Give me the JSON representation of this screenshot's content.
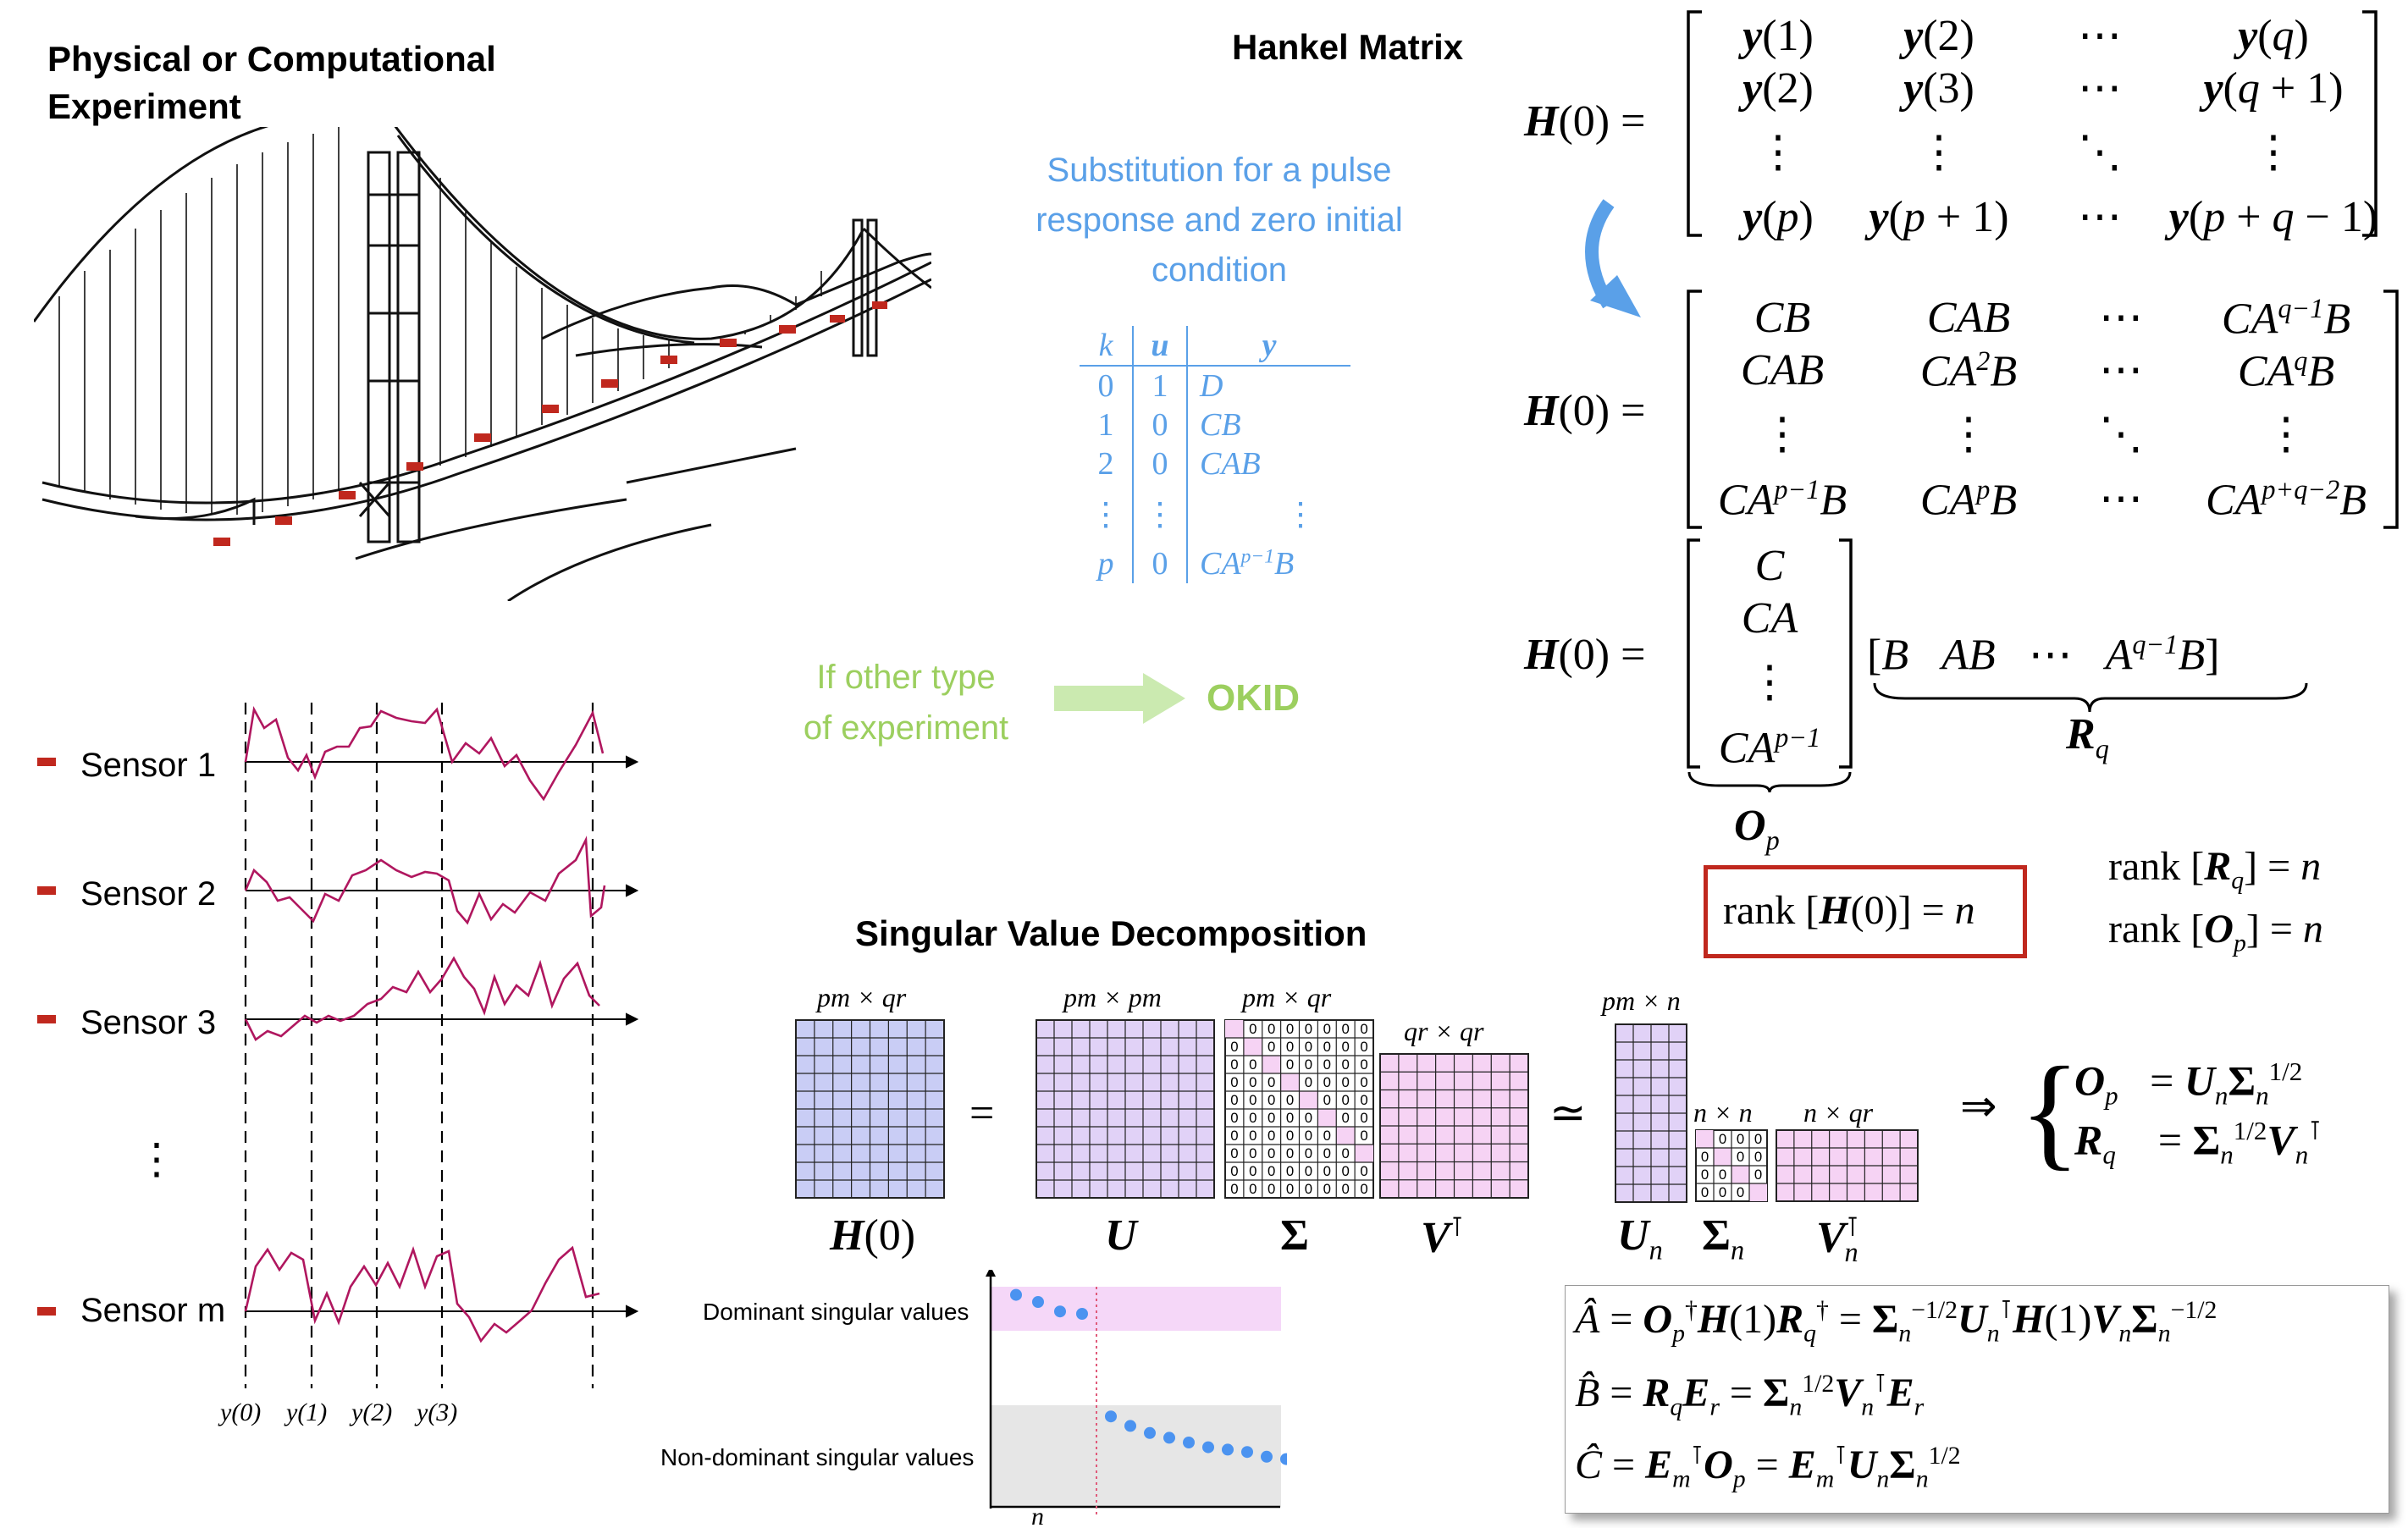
{
  "headings": {
    "experiment_line1": "Physical or Computational",
    "experiment_line2": "Experiment",
    "hankel": "Hankel Matrix",
    "svd": "Singular Value Decomposition"
  },
  "substitution": {
    "line1": "Substitution for a pulse",
    "line2": "response and zero initial",
    "line3": "condition",
    "headers": [
      "k",
      "u",
      "y"
    ],
    "rows": [
      [
        "0",
        "1",
        "D"
      ],
      [
        "1",
        "0",
        "CB"
      ],
      [
        "2",
        "0",
        "CAB"
      ],
      [
        "⋮",
        "⋮",
        "⋮"
      ],
      [
        "p",
        "0",
        "CA^{p−1}B"
      ]
    ]
  },
  "okid": {
    "line1": "If other type",
    "line2": "of experiment",
    "label": "OKID"
  },
  "sensors": [
    {
      "label": "Sensor 1"
    },
    {
      "label": "Sensor 2"
    },
    {
      "label": "Sensor 3"
    },
    {
      "label": "⋮"
    },
    {
      "label": "Sensor m"
    }
  ],
  "time_labels": [
    "y(0)",
    "y(1)",
    "y(2)",
    "y(3)"
  ],
  "svd": {
    "H_dim": "pm × qr",
    "U_dim": "pm × pm",
    "S_dim": "pm × qr",
    "V_dim": "qr × qr",
    "Un_dim": "pm × n",
    "Sn_dim": "n × n",
    "Vn_dim": "n × qr",
    "equals": "=",
    "approx": "≃",
    "implies": "⇒"
  },
  "singular_plot": {
    "dominant_label": "Dominant singular values",
    "nondominant_label": "Non-dominant singular values",
    "n_label": "n",
    "dominant_values": [
      0.93,
      0.9,
      0.86,
      0.85
    ],
    "nondominant_values": [
      0.56,
      0.52,
      0.49,
      0.47,
      0.45,
      0.43,
      0.42,
      0.41,
      0.39,
      0.38
    ]
  },
  "rank": {
    "boxed": "rank [H(0)] = n",
    "rq": "rank [R_q] = n",
    "op": "rank [O_p] = n"
  },
  "colors": {
    "blue": "#5aa0e8",
    "green": "#9ccf5f",
    "red": "#c0281e",
    "magenta": "#b0175f",
    "H_fill": "#c9cdf5",
    "U_fill": "#e1d2f7",
    "V_fill": "#f6d3f4",
    "pink_band": "#f5d7f8",
    "gray_band": "#e6e6e6"
  }
}
